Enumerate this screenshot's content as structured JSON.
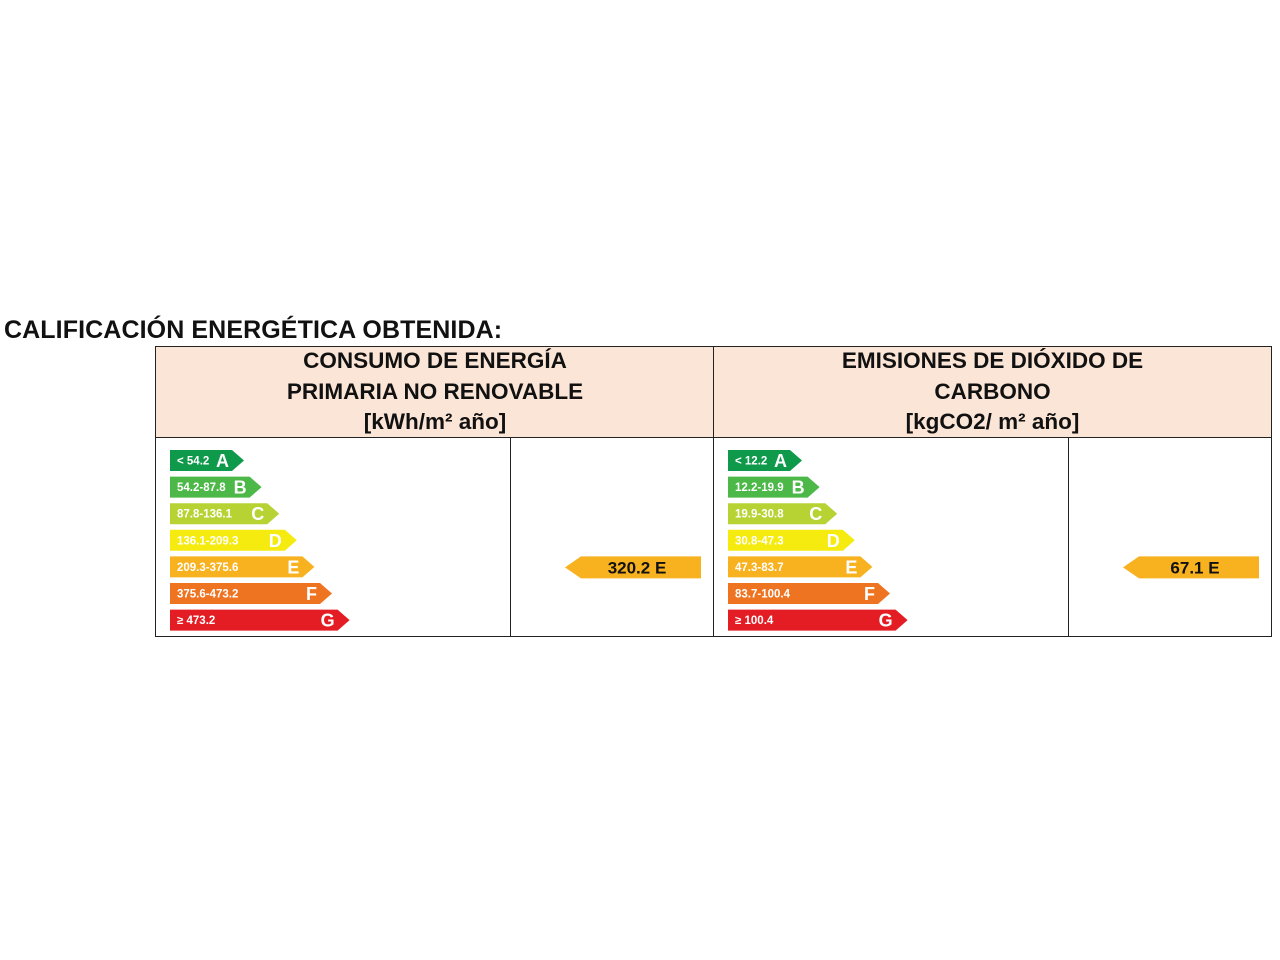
{
  "page_title": "CALIFICACIÓN ENERGÉTICA OBTENIDA:",
  "colors": {
    "header_bg": "#fbe5d6",
    "A": "#0e9a4a",
    "B": "#4cb848",
    "C": "#b6d333",
    "D": "#f5eb0f",
    "E": "#f8b11f",
    "F": "#ee7422",
    "G": "#e41d25"
  },
  "panels": [
    {
      "id": "energy",
      "header_lines": [
        "CONSUMO DE ENERGÍA",
        "PRIMARIA NO RENOVABLE",
        "[kWh/m² año]"
      ],
      "bands": [
        {
          "letter": "A",
          "range": "< 54.2"
        },
        {
          "letter": "B",
          "range": "54.2-87.8"
        },
        {
          "letter": "C",
          "range": "87.8-136.1"
        },
        {
          "letter": "D",
          "range": "136.1-209.3"
        },
        {
          "letter": "E",
          "range": "209.3-375.6"
        },
        {
          "letter": "F",
          "range": "375.6-473.2"
        },
        {
          "letter": "G",
          "range": "≥ 473.2"
        }
      ],
      "result": {
        "value": "320.2",
        "letter": "E",
        "label": "320.2 E"
      }
    },
    {
      "id": "emissions",
      "header_lines": [
        "EMISIONES DE DIÓXIDO DE",
        "CARBONO",
        "[kgCO2/ m² año]"
      ],
      "bands": [
        {
          "letter": "A",
          "range": "< 12.2"
        },
        {
          "letter": "B",
          "range": "12.2-19.9"
        },
        {
          "letter": "C",
          "range": "19.9-30.8"
        },
        {
          "letter": "D",
          "range": "30.8-47.3"
        },
        {
          "letter": "E",
          "range": "47.3-83.7"
        },
        {
          "letter": "F",
          "range": "83.7-100.4"
        },
        {
          "letter": "G",
          "range": "≥ 100.4"
        }
      ],
      "result": {
        "value": "67.1",
        "letter": "E",
        "label": "67.1 E"
      }
    }
  ]
}
